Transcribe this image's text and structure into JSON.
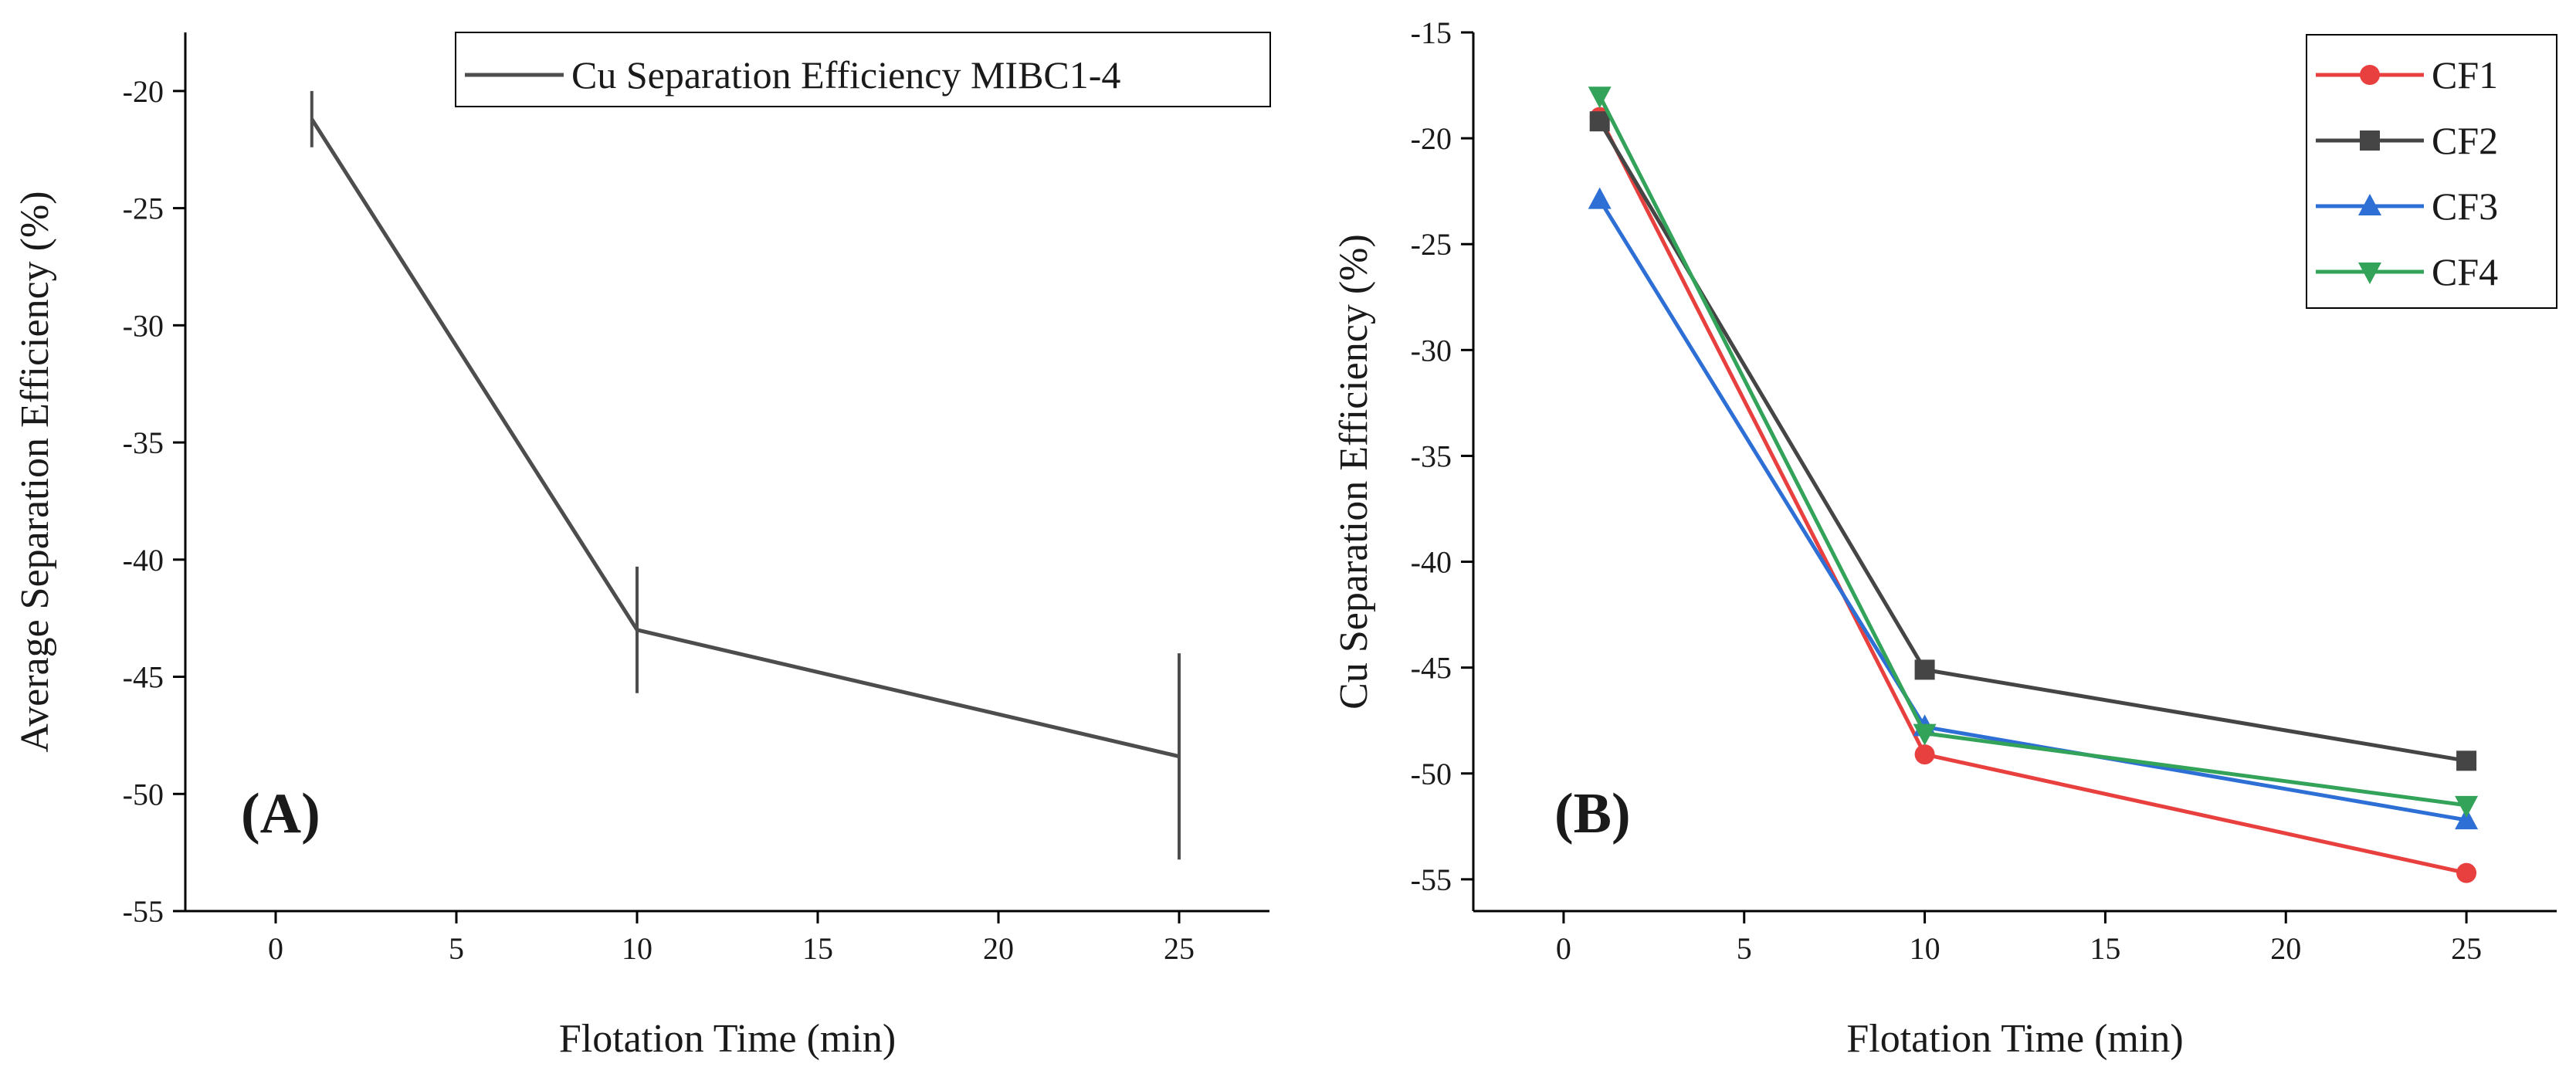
{
  "chart_data": [
    {
      "type": "line",
      "panel_label": "(A)",
      "xlabel": "Flotation Time (min)",
      "ylabel": "Average Separation Efficiency (%)",
      "xlim": [
        -2.5,
        27.5
      ],
      "ylim": [
        -55,
        -17.5
      ],
      "xticks": [
        0,
        5,
        10,
        15,
        20,
        25
      ],
      "yticks": [
        -55,
        -50,
        -45,
        -40,
        -35,
        -30,
        -25,
        -20
      ],
      "legend_position": "top-right",
      "series": [
        {
          "name": "Cu Separation Efficiency MIBC1-4",
          "color": "#4d4d4d",
          "marker": "none",
          "x": [
            1,
            10,
            25
          ],
          "y": [
            -21.2,
            -43.0,
            -48.4
          ],
          "yerr": [
            1.2,
            2.7,
            4.4
          ]
        }
      ]
    },
    {
      "type": "line",
      "panel_label": "(B)",
      "xlabel": "Flotation Time (min)",
      "ylabel": "Cu Separation Efficiency (%)",
      "xlim": [
        -2.5,
        27.5
      ],
      "ylim": [
        -56.5,
        -15
      ],
      "xticks": [
        0,
        5,
        10,
        15,
        20,
        25
      ],
      "yticks": [
        -55,
        -50,
        -45,
        -40,
        -35,
        -30,
        -25,
        -20,
        -15
      ],
      "legend_position": "top-right",
      "series": [
        {
          "name": "CF1",
          "color": "#e8403f",
          "marker": "circle",
          "x": [
            1,
            10,
            25
          ],
          "y": [
            -19.0,
            -49.1,
            -54.7
          ]
        },
        {
          "name": "CF2",
          "color": "#454545",
          "marker": "square",
          "x": [
            1,
            10,
            25
          ],
          "y": [
            -19.2,
            -45.1,
            -49.4
          ]
        },
        {
          "name": "CF3",
          "color": "#2e6fd6",
          "marker": "triangle-up",
          "x": [
            1,
            10,
            25
          ],
          "y": [
            -22.9,
            -47.8,
            -52.2
          ]
        },
        {
          "name": "CF4",
          "color": "#33a35a",
          "marker": "triangle-down",
          "x": [
            1,
            10,
            25
          ],
          "y": [
            -18.0,
            -48.1,
            -51.5
          ]
        }
      ]
    }
  ]
}
